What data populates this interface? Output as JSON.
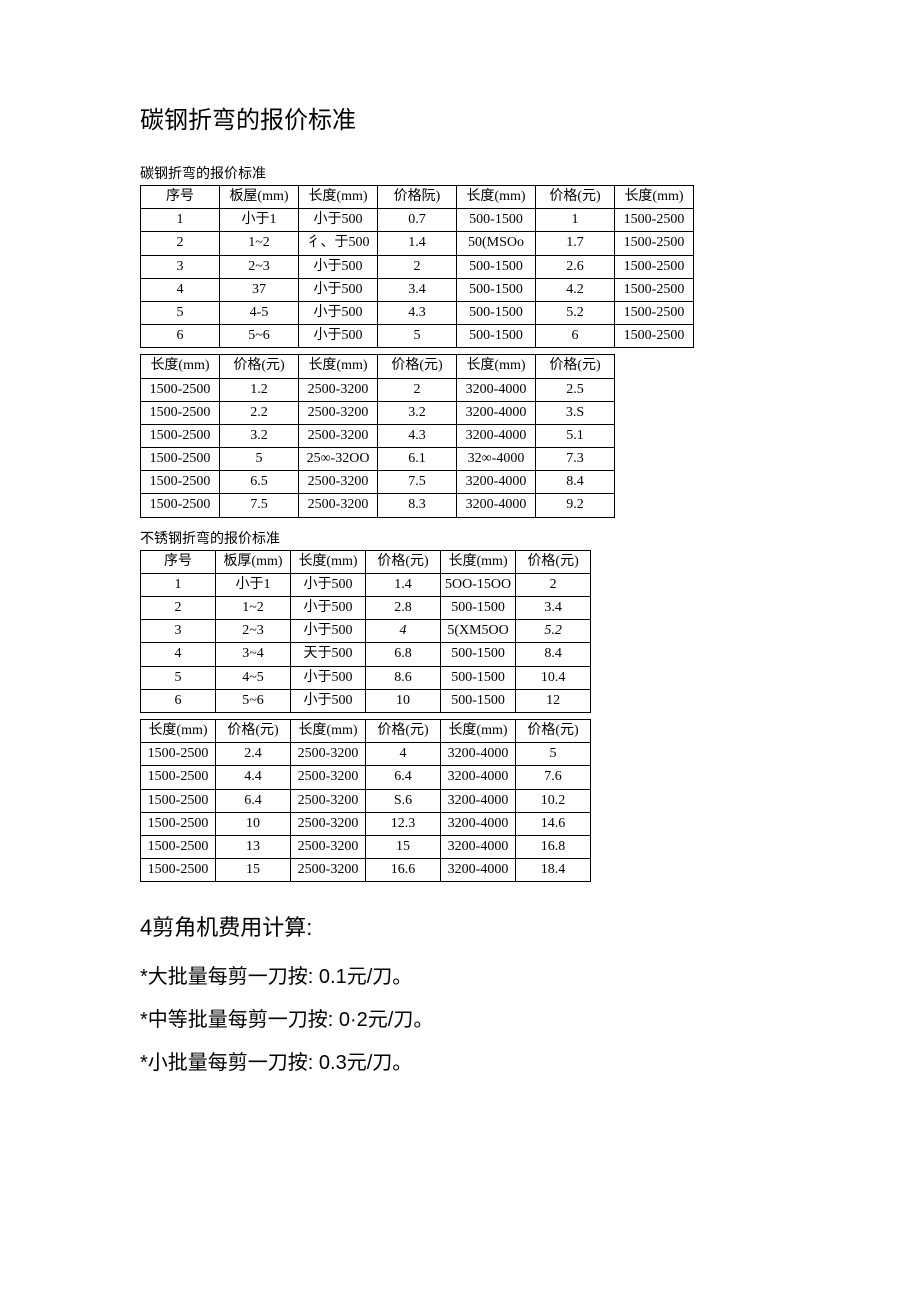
{
  "title": "碳钢折弯的报价标准",
  "section1": {
    "subtitle": "碳钢折弯的报价标准",
    "table_a": {
      "headers": [
        "序号",
        "板屋(mm)",
        "长度(mm)",
        "价格阮)",
        "长度(mm)",
        "价格(元)",
        "长度(mm)"
      ],
      "rows": [
        [
          "1",
          "小于1",
          "小于500",
          "0.7",
          "500-1500",
          "1",
          "1500-2500"
        ],
        [
          "2",
          "1~2",
          "彳、于500",
          "1.4",
          "50(MSOo",
          "1.7",
          "1500-2500"
        ],
        [
          "3",
          "2~3",
          "小于500",
          "2",
          "500-1500",
          "2.6",
          "1500-2500"
        ],
        [
          "4",
          "37",
          "小于500",
          "3.4",
          "500-1500",
          "4.2",
          "1500-2500"
        ],
        [
          "5",
          "4-5",
          "小于500",
          "4.3",
          "500-1500",
          "5.2",
          "1500-2500"
        ],
        [
          "6",
          "5~6",
          "小于500",
          "5",
          "500-1500",
          "6",
          "1500-2500"
        ]
      ]
    },
    "table_b": {
      "headers": [
        "长度(mm)",
        "价格(元)",
        "长度(mm)",
        "价格(元)",
        "长度(mm)",
        "价格(元)"
      ],
      "rows": [
        [
          "1500-2500",
          "1.2",
          "2500-3200",
          "2",
          "3200-4000",
          "2.5"
        ],
        [
          "1500-2500",
          "2.2",
          "2500-3200",
          "3.2",
          "3200-4000",
          "3.S"
        ],
        [
          "1500-2500",
          "3.2",
          "2500-3200",
          "4.3",
          "3200-4000",
          "5.1"
        ],
        [
          "1500-2500",
          "5",
          "25∞-32OO",
          "6.1",
          "32∞-4000",
          "7.3"
        ],
        [
          "1500-2500",
          "6.5",
          "2500-3200",
          "7.5",
          "3200-4000",
          "8.4"
        ],
        [
          "1500-2500",
          "7.5",
          "2500-3200",
          "8.3",
          "3200-4000",
          "9.2"
        ]
      ]
    }
  },
  "section2": {
    "subtitle": "不锈钢折弯的报价标准",
    "table_a": {
      "headers": [
        "序号",
        "板厚(mm)",
        "长度(mm)",
        "价格(元)",
        "长度(mm)",
        "价格(元)"
      ],
      "rows": [
        [
          "1",
          "小于1",
          "小于500",
          "1.4",
          "5OO-15OO",
          "2"
        ],
        [
          "2",
          "1~2",
          "小于500",
          "2.8",
          "500-1500",
          "3.4"
        ],
        [
          "3",
          "2~3",
          "小于500",
          "4",
          "5(XM5OO",
          "5.2"
        ],
        [
          "4",
          "3~4",
          "天于500",
          "6.8",
          "500-1500",
          "8.4"
        ],
        [
          "5",
          "4~5",
          "小于500",
          "8.6",
          "500-1500",
          "10.4"
        ],
        [
          "6",
          "5~6",
          "小于500",
          "10",
          "500-1500",
          "12"
        ]
      ],
      "italic_cells": [
        [
          2,
          3
        ],
        [
          2,
          5
        ]
      ]
    },
    "table_b": {
      "headers": [
        "长度(mm)",
        "价格(元)",
        "长度(mm)",
        "价格(元)",
        "长度(mm)",
        "价格(元)"
      ],
      "rows": [
        [
          "1500-2500",
          "2.4",
          "2500-3200",
          "4",
          "3200-4000",
          "5"
        ],
        [
          "1500-2500",
          "4.4",
          "2500-3200",
          "6.4",
          "3200-4000",
          "7.6"
        ],
        [
          "1500-2500",
          "6.4",
          "2500-3200",
          "S.6",
          "3200-4000",
          "10.2"
        ],
        [
          "1500-2500",
          "10",
          "2500-3200",
          "12.3",
          "3200-4000",
          "14.6"
        ],
        [
          "1500-2500",
          "13",
          "2500-3200",
          "15",
          "3200-4000",
          "16.8"
        ],
        [
          "1500-2500",
          "15",
          "2500-3200",
          "16.6",
          "3200-4000",
          "18.4"
        ]
      ]
    }
  },
  "section3": {
    "heading": "4剪角机费用计算:",
    "bullets": [
      "*大批量每剪一刀按:  0.1元/刀。",
      "*中等批量每剪一刀按: 0·2元/刀。",
      "*小批量每剪一刀按: 0.3元/刀。"
    ]
  }
}
